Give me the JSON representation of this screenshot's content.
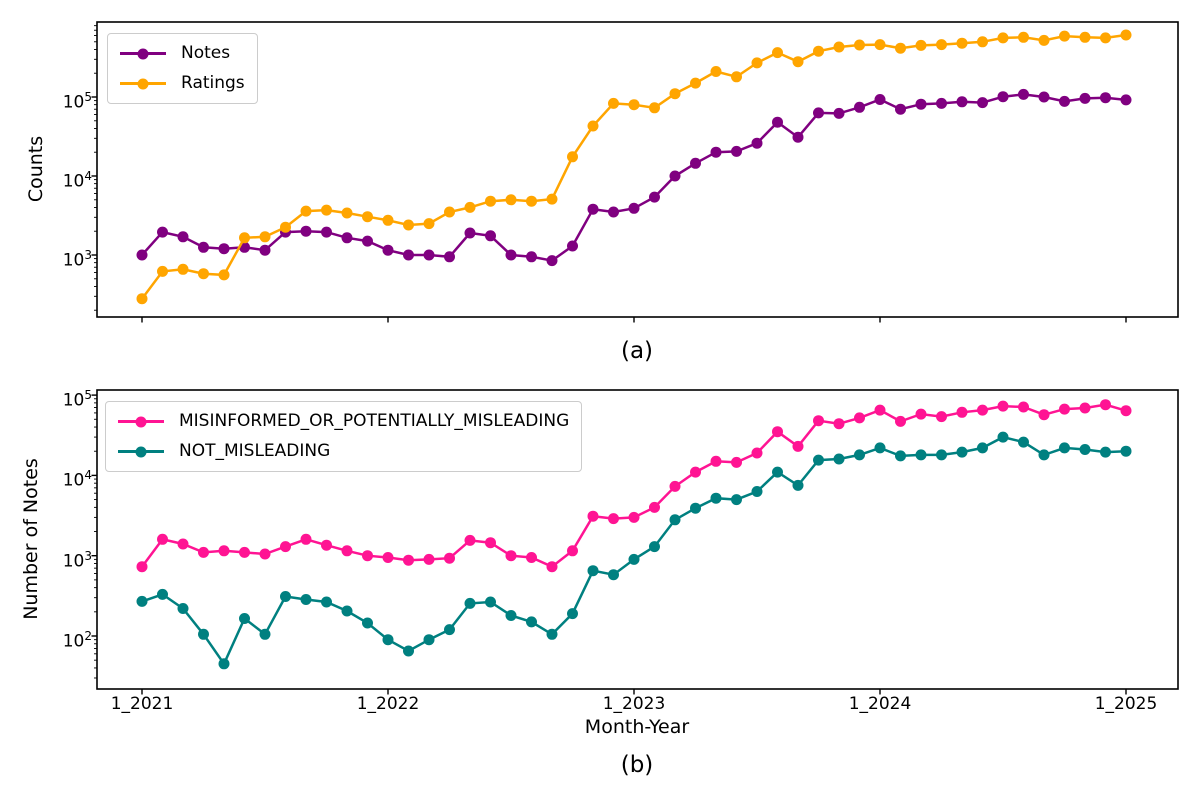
{
  "figure": {
    "background": "#ffffff",
    "text_color": "#000000"
  },
  "chart_data": [
    {
      "id": "a",
      "type": "line",
      "caption": "(a)",
      "ylabel": "Counts",
      "xlabel": "",
      "yscale": "log",
      "ylim_exponents": [
        2.2,
        6.05
      ],
      "y_tick_exponents": [
        3,
        4,
        5
      ],
      "x_unit": "month",
      "x_start_label": "1_2021",
      "x_end_label": "1_2025",
      "n_points": 49,
      "x_tick_positions": [
        0,
        12,
        24,
        36,
        48
      ],
      "x_tick_labels": [],
      "legend_position": "upper left",
      "grid": false,
      "series": [
        {
          "name": "Notes",
          "color": "#800080",
          "values": [
            1000,
            1950,
            1700,
            1250,
            1200,
            1250,
            1150,
            1950,
            2000,
            1950,
            1650,
            1500,
            1150,
            1000,
            1000,
            950,
            1900,
            1750,
            1000,
            950,
            850,
            1300,
            3800,
            3500,
            3900,
            5400,
            10000,
            14500,
            20000,
            20500,
            26000,
            48000,
            31000,
            63000,
            62000,
            74000,
            93000,
            70000,
            81000,
            83000,
            87000,
            85000,
            101000,
            108000,
            100000,
            88000,
            96000,
            98000,
            92000
          ]
        },
        {
          "name": "Ratings",
          "color": "#FFA500",
          "values": [
            280,
            620,
            660,
            580,
            560,
            1650,
            1700,
            2250,
            3600,
            3700,
            3400,
            3050,
            2750,
            2400,
            2500,
            3500,
            4000,
            4800,
            5000,
            4800,
            5100,
            17500,
            43000,
            83000,
            80000,
            73000,
            110000,
            150000,
            210000,
            180000,
            270000,
            365000,
            280000,
            380000,
            430000,
            455000,
            460000,
            415000,
            450000,
            460000,
            480000,
            500000,
            560000,
            570000,
            520000,
            590000,
            570000,
            560000,
            610000
          ]
        }
      ]
    },
    {
      "id": "b",
      "type": "line",
      "caption": "(b)",
      "ylabel": "Number of Notes",
      "xlabel": "Month-Year",
      "yscale": "log",
      "ylim_exponents": [
        1.4,
        5.06
      ],
      "y_tick_exponents": [
        2,
        3,
        4,
        5
      ],
      "x_unit": "month",
      "x_start_label": "1_2021",
      "x_end_label": "1_2025",
      "n_points": 49,
      "x_tick_positions": [
        0,
        12,
        24,
        36,
        48
      ],
      "x_tick_labels": [
        "1_2021",
        "1_2022",
        "1_2023",
        "1_2024",
        "1_2025"
      ],
      "legend_position": "upper left",
      "grid": false,
      "series": [
        {
          "name": "MISINFORMED_OR_POTENTIALLY_MISLEADING",
          "color": "#FF1493",
          "values": [
            730,
            1600,
            1400,
            1100,
            1150,
            1100,
            1050,
            1300,
            1600,
            1350,
            1150,
            1000,
            950,
            880,
            900,
            930,
            1550,
            1450,
            1000,
            950,
            730,
            1150,
            3100,
            2900,
            3000,
            4000,
            7300,
            11000,
            15000,
            14500,
            19000,
            35000,
            23000,
            48000,
            44000,
            52000,
            65000,
            47000,
            58000,
            54000,
            61000,
            65000,
            73000,
            71000,
            57000,
            67000,
            69000,
            76000,
            64000
          ]
        },
        {
          "name": "NOT_MISLEADING",
          "color": "#008080",
          "values": [
            270,
            330,
            220,
            105,
            45,
            165,
            105,
            310,
            285,
            265,
            205,
            145,
            90,
            65,
            90,
            120,
            255,
            265,
            180,
            150,
            105,
            190,
            650,
            580,
            900,
            1300,
            2800,
            3900,
            5200,
            5000,
            6300,
            11000,
            7500,
            15500,
            16000,
            18000,
            22000,
            17500,
            18000,
            18000,
            19500,
            22000,
            30000,
            26000,
            18000,
            22000,
            21000,
            19500,
            20000
          ]
        }
      ]
    }
  ]
}
